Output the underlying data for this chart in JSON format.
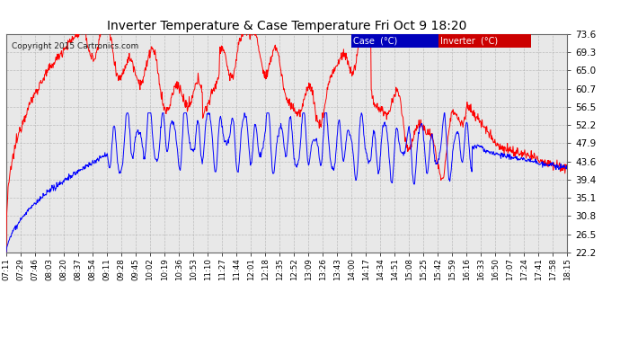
{
  "title": "Inverter Temperature & Case Temperature Fri Oct 9 18:20",
  "copyright": "Copyright 2015 Cartronics.com",
  "background_color": "#ffffff",
  "plot_background": "#e8e8e8",
  "grid_color": "#aaaaaa",
  "legend_entries": [
    "Case  (°C)",
    "Inverter  (°C)"
  ],
  "y_ticks": [
    22.2,
    26.5,
    30.8,
    35.1,
    39.4,
    43.6,
    47.9,
    52.2,
    56.5,
    60.7,
    65.0,
    69.3,
    73.6
  ],
  "ylim": [
    22.2,
    73.6
  ],
  "x_tick_labels": [
    "07:11",
    "07:29",
    "07:46",
    "08:03",
    "08:20",
    "08:37",
    "08:54",
    "09:11",
    "09:28",
    "09:45",
    "10:02",
    "10:19",
    "10:36",
    "10:53",
    "11:10",
    "11:27",
    "11:44",
    "12:01",
    "12:18",
    "12:35",
    "12:52",
    "13:09",
    "13:26",
    "13:43",
    "14:00",
    "14:17",
    "14:34",
    "14:51",
    "15:08",
    "15:25",
    "15:42",
    "15:59",
    "16:16",
    "16:33",
    "16:50",
    "17:07",
    "17:24",
    "17:41",
    "17:58",
    "18:15"
  ],
  "inverter_color": "#ff0000",
  "case_color": "#0000ff",
  "line_width": 0.7
}
